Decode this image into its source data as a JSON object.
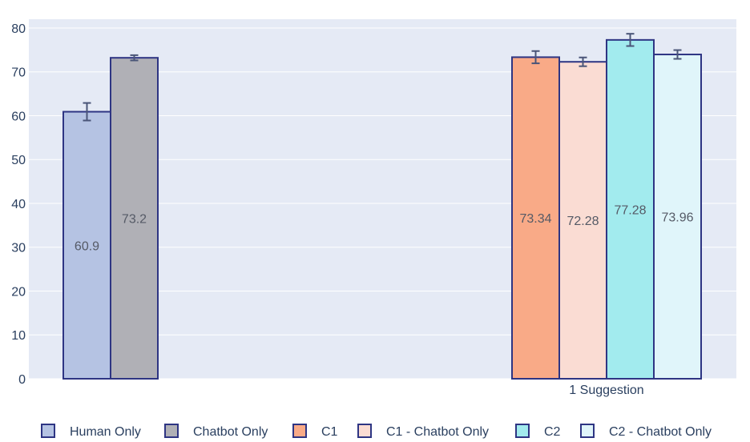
{
  "chart_data": {
    "type": "bar",
    "title": "",
    "xlabel": "",
    "ylabel": "",
    "ylim": [
      0,
      82
    ],
    "yticks": [
      0,
      10,
      20,
      30,
      40,
      50,
      60,
      70,
      80
    ],
    "grid": true,
    "legend_position": "bottom",
    "groups": [
      {
        "label": "",
        "bars": [
          {
            "name": "Human Only",
            "value": 60.9,
            "label": "60.9",
            "error": 2.0,
            "color": "#b5c3e3"
          },
          {
            "name": "Chatbot Only",
            "value": 73.2,
            "label": "73.2",
            "error": 0.6,
            "color": "#b0b0b6"
          }
        ]
      },
      {
        "label": "1 Suggestion",
        "bars": [
          {
            "name": "C1",
            "value": 73.34,
            "label": "73.34",
            "error": 1.4,
            "color": "#f9aa87"
          },
          {
            "name": "C1 - Chatbot Only",
            "value": 72.28,
            "label": "72.28",
            "error": 1.0,
            "color": "#fadcd3"
          },
          {
            "name": "C2",
            "value": 77.28,
            "label": "77.28",
            "error": 1.4,
            "color": "#a2ebee"
          },
          {
            "name": "C2 - Chatbot Only",
            "value": 73.96,
            "label": "73.96",
            "error": 1.0,
            "color": "#e0f5fa"
          }
        ]
      }
    ],
    "legend": [
      {
        "name": "Human Only",
        "color": "#b5c3e3"
      },
      {
        "name": "Chatbot Only",
        "color": "#b0b0b6"
      },
      {
        "name": "C1",
        "color": "#f9aa87"
      },
      {
        "name": "C1 - Chatbot Only",
        "color": "#fadcd3"
      },
      {
        "name": "C2",
        "color": "#a2ebee"
      },
      {
        "name": "C2 - Chatbot Only",
        "color": "#e0f5fa"
      }
    ],
    "colors": {
      "plot_background": "#e5eaf5",
      "gridline": "#ffffff",
      "bar_outline": "#2e3583",
      "error_bar": "#4a5578"
    }
  }
}
